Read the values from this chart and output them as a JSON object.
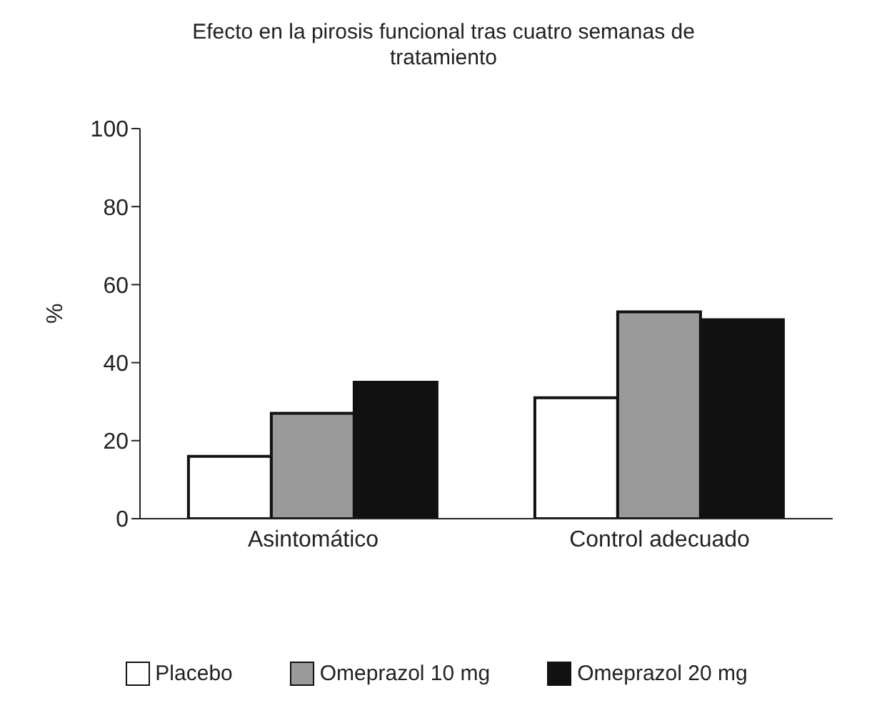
{
  "chart_data": {
    "type": "bar",
    "title": "Efecto en la pirosis funcional tras cuatro semanas de tratamiento",
    "ylabel": "%",
    "categories": [
      "Asintomático",
      "Control adecuado"
    ],
    "series": [
      {
        "name": "Placebo",
        "color": "#ffffff",
        "values": [
          16,
          31
        ]
      },
      {
        "name": "Omeprazol 10 mg",
        "color": "#9a9a9a",
        "values": [
          27,
          53
        ]
      },
      {
        "name": "Omeprazol 20 mg",
        "color": "#111111",
        "values": [
          35,
          51
        ]
      }
    ],
    "ylim": [
      0,
      100
    ],
    "yticks": [
      0,
      20,
      40,
      60,
      80,
      100
    ],
    "grid": false,
    "legend": "bottom"
  }
}
